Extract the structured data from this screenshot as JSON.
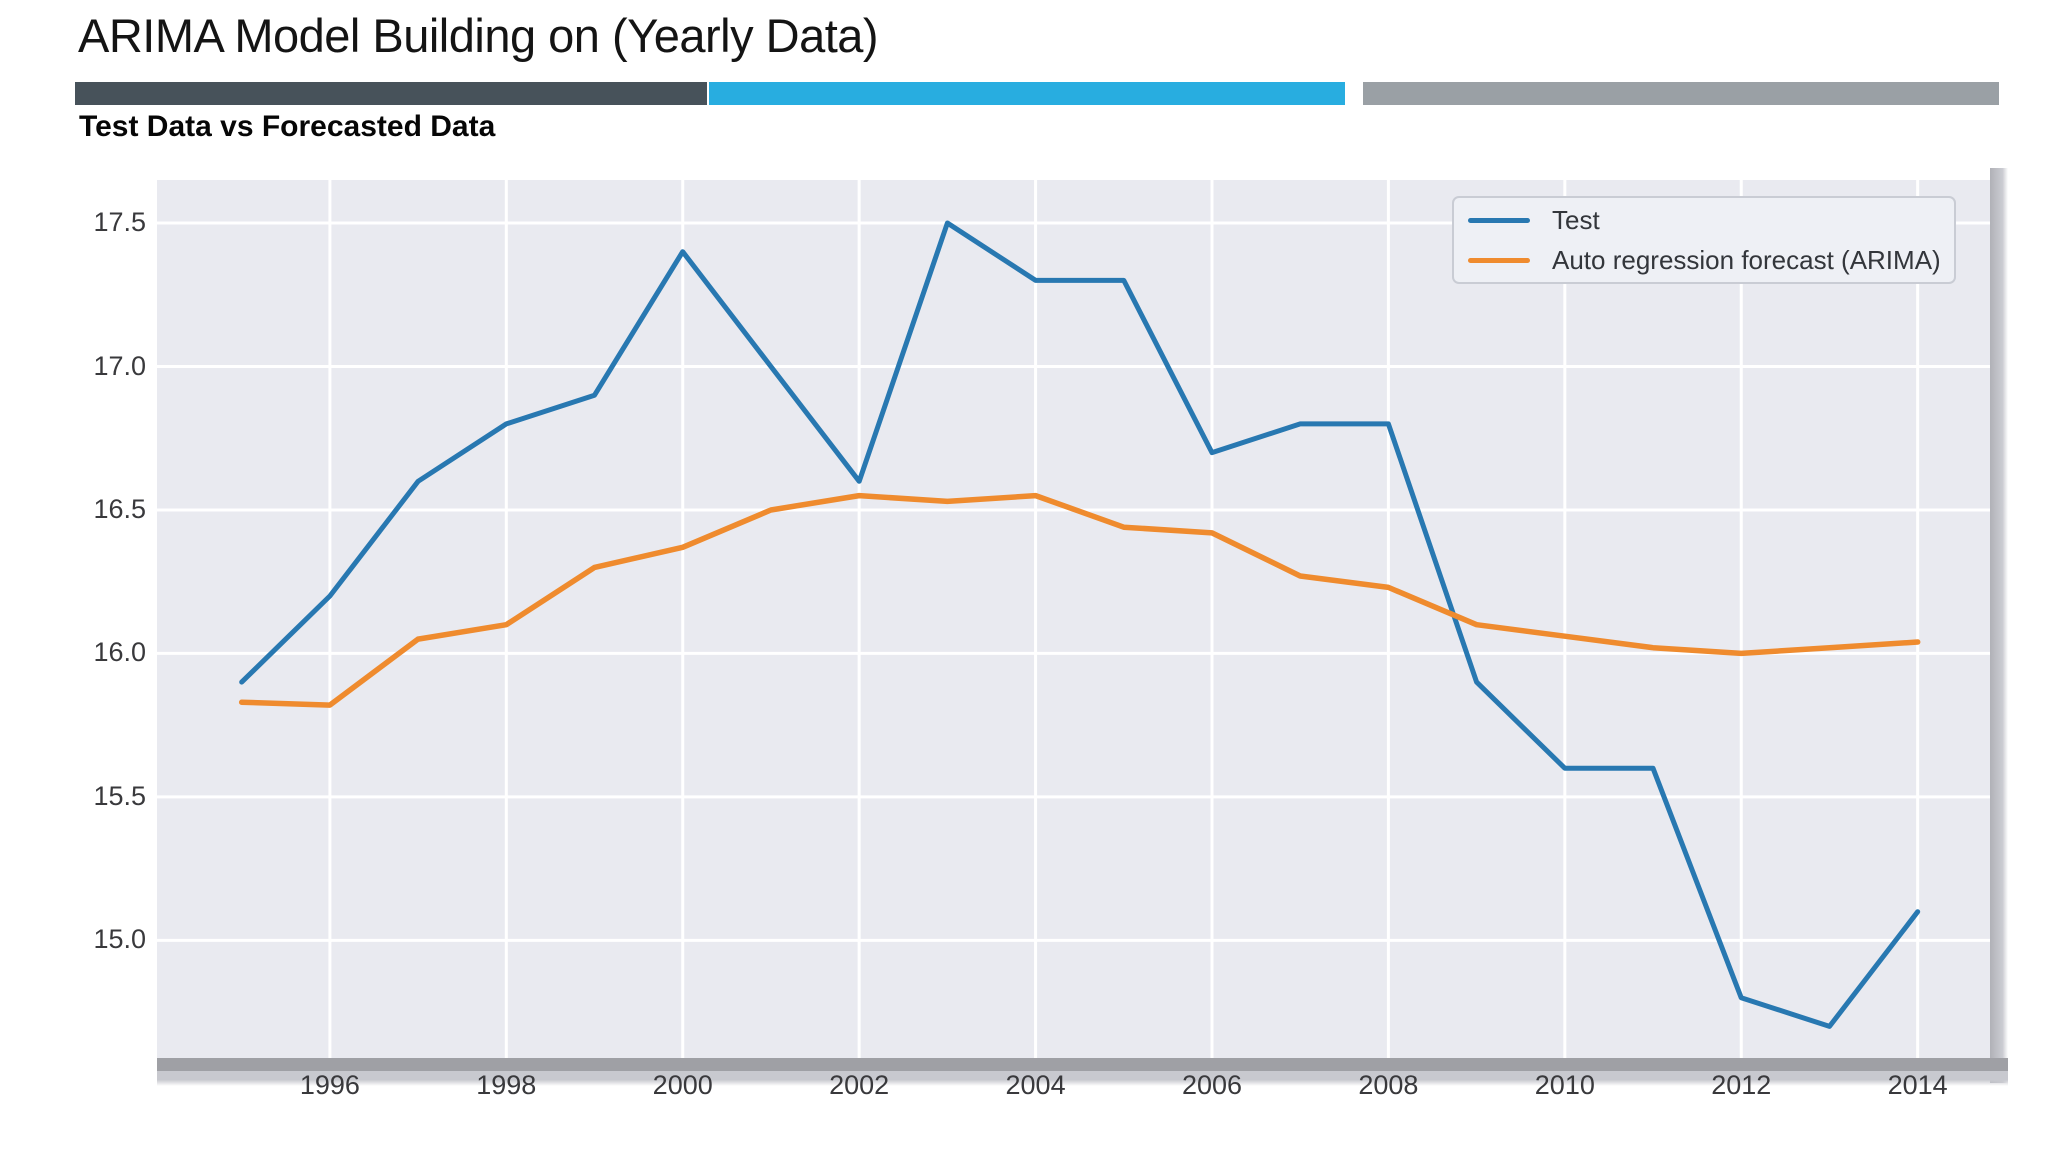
{
  "page": {
    "title": "ARIMA Model Building on (Yearly Data)",
    "subtitle": "Test Data vs Forecasted Data"
  },
  "divider": {
    "segments": [
      {
        "name": "dark",
        "color": "#47525a"
      },
      {
        "name": "blue",
        "color": "#28ade0"
      },
      {
        "name": "gray",
        "color": "#9aa0a5"
      }
    ]
  },
  "chart_data": {
    "type": "line",
    "title": "Test Data vs Forecasted Data",
    "xlabel": "",
    "ylabel": "",
    "x": [
      1995,
      1996,
      1997,
      1998,
      1999,
      2000,
      2001,
      2002,
      2003,
      2004,
      2005,
      2006,
      2007,
      2008,
      2009,
      2010,
      2011,
      2012,
      2013,
      2014
    ],
    "series": [
      {
        "name": "Test",
        "color": "#2878b1",
        "values": [
          15.9,
          16.2,
          16.6,
          16.8,
          16.9,
          17.4,
          17.0,
          16.6,
          17.5,
          17.3,
          17.3,
          16.7,
          16.8,
          16.8,
          15.9,
          15.6,
          15.6,
          14.8,
          14.7,
          15.1
        ]
      },
      {
        "name": "Auto regression forecast (ARIMA)",
        "color": "#ef8b2e",
        "values": [
          15.83,
          15.82,
          16.05,
          16.1,
          16.3,
          16.37,
          16.5,
          16.55,
          16.53,
          16.55,
          16.44,
          16.42,
          16.27,
          16.23,
          16.1,
          16.06,
          16.02,
          16.0,
          16.02,
          16.04
        ]
      }
    ],
    "xticks": [
      1996,
      1998,
      2000,
      2002,
      2004,
      2006,
      2008,
      2010,
      2012,
      2014
    ],
    "yticks": [
      17.5,
      17.0,
      16.5,
      16.0,
      15.5,
      15.0
    ],
    "ytick_labels": [
      "17.5",
      "17.0",
      "16.5",
      "16.0",
      "15.5",
      "15.0"
    ],
    "xlim": [
      1994.04,
      2014.82
    ],
    "ylim": [
      14.59,
      17.65
    ],
    "grid": true,
    "legend_position": "upper right",
    "colors": {
      "plot_bg": "#e9eaf0",
      "grid": "#ffffff",
      "tick_text": "#39393c",
      "legend_bg": "#eef0f5",
      "legend_border": "#c9ccd4",
      "legend_text": "#33363b"
    }
  }
}
